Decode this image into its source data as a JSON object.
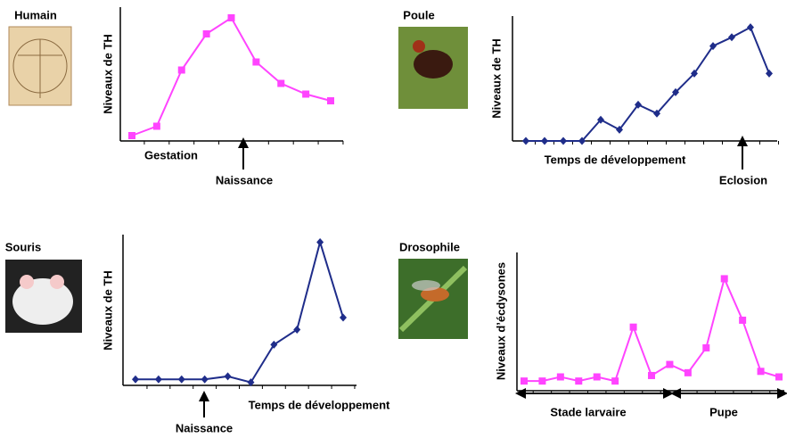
{
  "chart_data": [
    {
      "type": "line",
      "title": "Humain",
      "y_label": "Niveaux de TH",
      "annotations": [
        "Gestation",
        "Naissance"
      ],
      "categories": [
        null,
        null,
        null,
        null,
        null,
        null,
        null,
        null,
        null
      ],
      "series": [
        {
          "color": "#ff44ff",
          "marker": "square",
          "values": [
            0.4,
            1.1,
            5.3,
            8,
            9.2,
            5.9,
            4.3,
            3.5,
            3.0
          ]
        }
      ],
      "ylim": [
        0,
        10
      ]
    },
    {
      "type": "line",
      "title": "Poule",
      "y_label": "Niveaux de TH",
      "annotations": [
        "Temps de développement",
        "Eclosion"
      ],
      "categories": [
        null,
        null,
        null,
        null,
        null,
        null,
        null,
        null,
        null,
        null,
        null,
        null,
        null,
        null
      ],
      "series": [
        {
          "color": "#1f2d8a",
          "marker": "diamond",
          "values": [
            0,
            0,
            0,
            0,
            1.7,
            0.9,
            2.9,
            2.2,
            3.9,
            5.4,
            7.6,
            8.3,
            9.1,
            5.4
          ]
        }
      ],
      "ylim": [
        0,
        10
      ]
    },
    {
      "type": "line",
      "title": "Souris",
      "y_label": "Niveaux de TH",
      "annotations": [
        "Naissance",
        "Temps de développement"
      ],
      "categories": [
        null,
        null,
        null,
        null,
        null,
        null,
        null,
        null,
        null,
        null
      ],
      "series": [
        {
          "color": "#1f2d8a",
          "marker": "diamond",
          "values": [
            0.4,
            0.4,
            0.4,
            0.4,
            0.6,
            0.2,
            2.7,
            3.7,
            9.5,
            4.5
          ]
        }
      ],
      "ylim": [
        0,
        10
      ]
    },
    {
      "type": "line",
      "title": "Drosophile",
      "y_label": "Niveaux d’écdysones",
      "annotations": [
        "Stade larvaire",
        "Pupe"
      ],
      "categories": [
        null,
        null,
        null,
        null,
        null,
        null,
        null,
        null,
        null,
        null,
        null,
        null,
        null,
        null,
        null
      ],
      "series": [
        {
          "color": "#ff44ff",
          "marker": "square",
          "values": [
            0.7,
            0.7,
            1.0,
            0.7,
            1.0,
            0.7,
            4.6,
            1.1,
            1.9,
            1.3,
            3.1,
            8.1,
            5.1,
            1.4,
            1.0
          ]
        }
      ],
      "ylim": [
        0,
        10
      ]
    }
  ]
}
